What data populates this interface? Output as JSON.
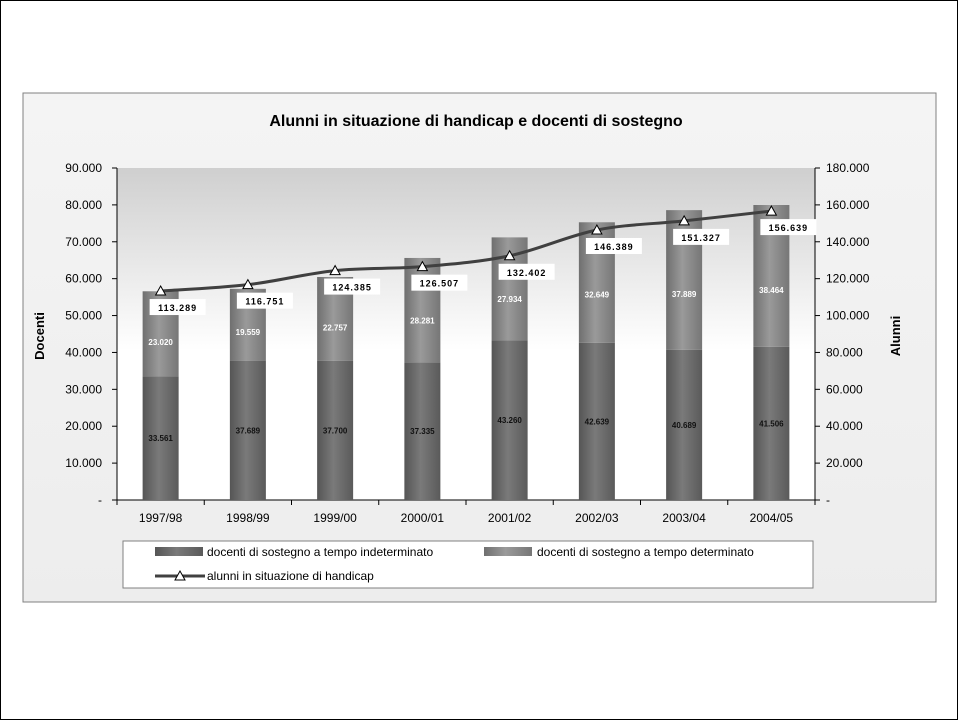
{
  "chart_data": {
    "type": "bar",
    "title": "Alunni in situazione di handicap e docenti di sostegno",
    "ylabel": "Docenti",
    "y2label": "Alunni",
    "categories": [
      "1997/98",
      "1998/99",
      "1999/00",
      "2000/01",
      "2001/02",
      "2002/03",
      "2003/04",
      "2004/05"
    ],
    "ylim": [
      0,
      90000
    ],
    "y2lim": [
      0,
      180000
    ],
    "yticks": [
      "-",
      "10.000",
      "20.000",
      "30.000",
      "40.000",
      "50.000",
      "60.000",
      "70.000",
      "80.000",
      "90.000"
    ],
    "y2ticks": [
      "-",
      "20.000",
      "40.000",
      "60.000",
      "80.000",
      "100.000",
      "120.000",
      "140.000",
      "160.000",
      "180.000"
    ],
    "stacked": true,
    "series": [
      {
        "name": "docenti di sostegno a tempo indeterminato",
        "axis": "left",
        "values": [
          33561,
          37689,
          37700,
          37335,
          43260,
          42639,
          40689,
          41506
        ],
        "labels": [
          "33.561",
          "37.689",
          "37.700",
          "37.335",
          "43.260",
          "42.639",
          "40.689",
          "41.506"
        ],
        "color": "#6e6e6e"
      },
      {
        "name": "docenti di sostegno a tempo determinato",
        "axis": "left",
        "values": [
          23020,
          19559,
          22757,
          28281,
          27934,
          32649,
          37889,
          38464
        ],
        "labels": [
          "23.020",
          "19.559",
          "22.757",
          "28.281",
          "27.934",
          "32.649",
          "37.889",
          "38.464"
        ],
        "color": "#8c8c8c"
      },
      {
        "name": "alunni in situazione di handicap",
        "type": "line",
        "axis": "right",
        "values": [
          113289,
          116751,
          124385,
          126507,
          132402,
          146389,
          151327,
          156639
        ],
        "labels": [
          "113.289",
          "116.751",
          "124.385",
          "126.507",
          "132.402",
          "146.389",
          "151.327",
          "156.639"
        ],
        "color": "#404040"
      }
    ],
    "legend": "bottom",
    "grid": false
  }
}
